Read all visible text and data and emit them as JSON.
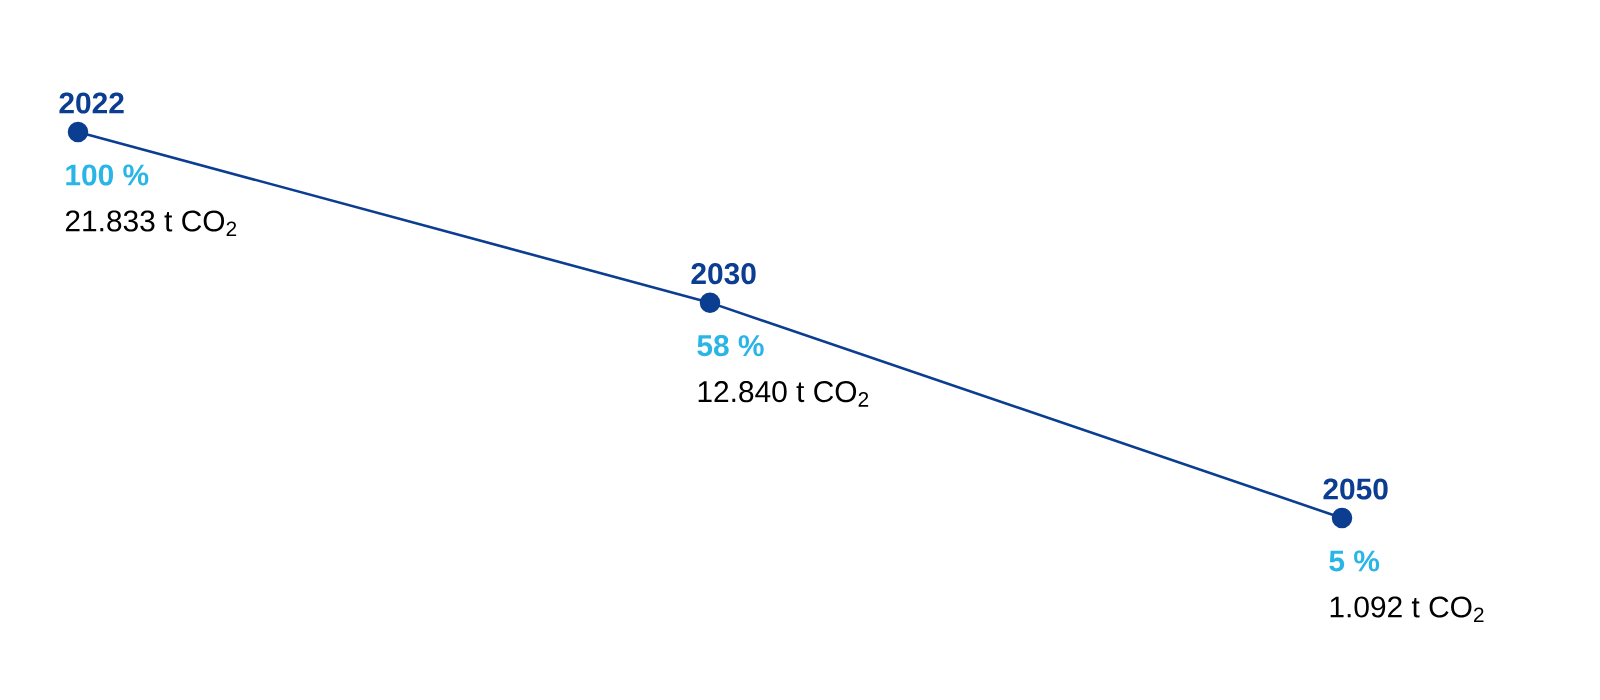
{
  "chart_data": {
    "type": "line",
    "categories": [
      "2022",
      "2030",
      "2050"
    ],
    "series": [
      {
        "color": "#0b3d91",
        "values": [
          100,
          58,
          5
        ],
        "value_labels": [
          "100 %",
          "58 %",
          "5 %"
        ]
      }
    ],
    "marker": "circle",
    "line_style": "solid",
    "annotations": [
      {
        "text": "21.833 t CO$_{2}$",
        "x": "2022",
        "y": 100
      },
      {
        "text": "12.840 t CO$_{2}$",
        "x": "2030",
        "y": 58
      },
      {
        "text": "1.092 t CO$_{2}$",
        "x": "2050",
        "y": 5
      }
    ]
  }
}
